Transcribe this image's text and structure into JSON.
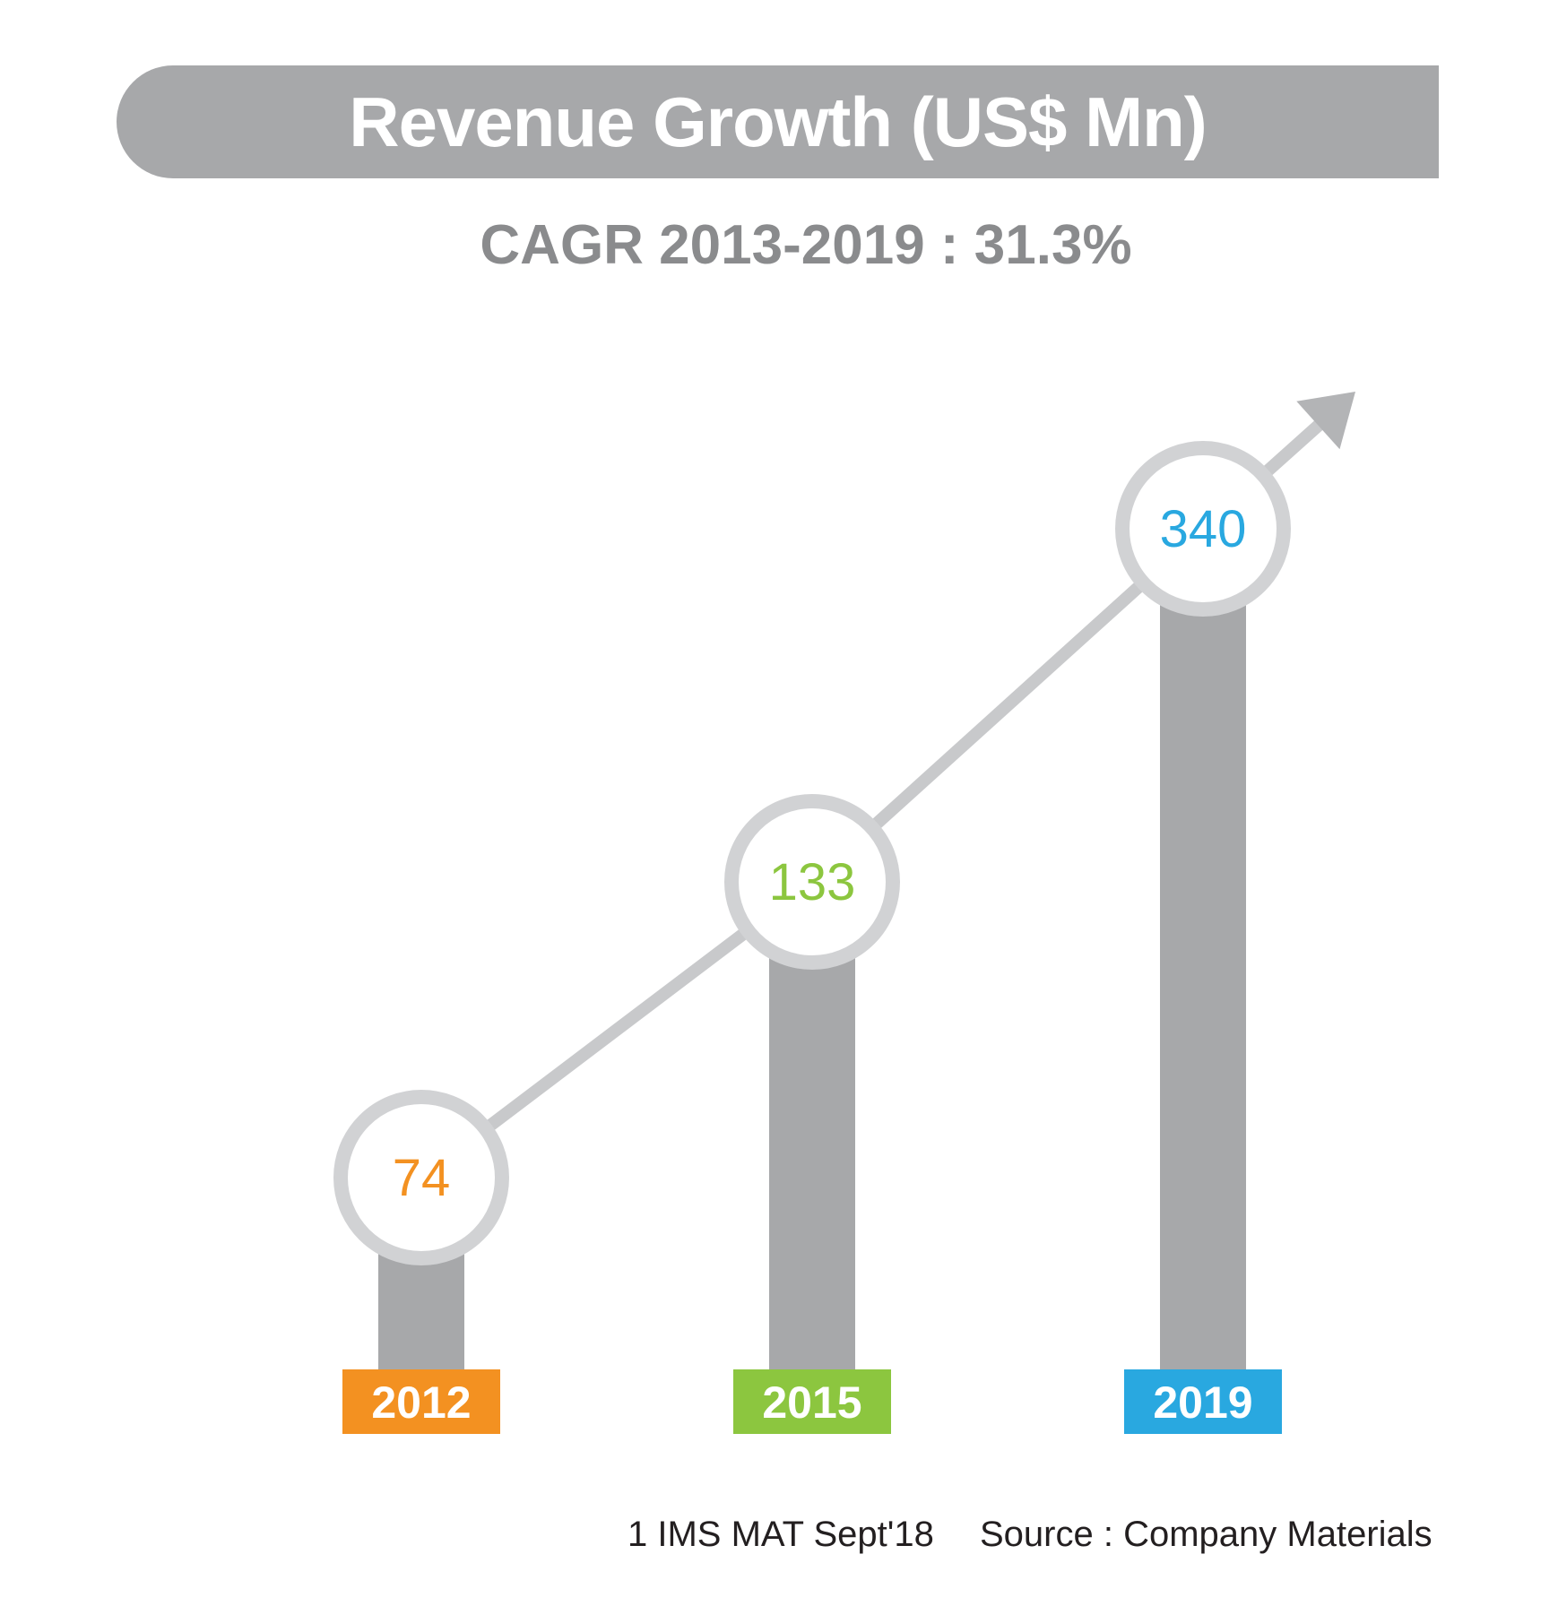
{
  "title": "Revenue Growth (US$ Mn)",
  "subtitle": "CAGR 2013-2019 : 31.3%",
  "footer": {
    "note": "1 IMS MAT Sept'18",
    "source": "Source : Company Materials"
  },
  "colors": {
    "bar": "#a7a8aa",
    "circle_ring": "#d1d2d4",
    "trend_line": "#c8c9cb",
    "title_bar": "#a7a8aa"
  },
  "chart_data": {
    "type": "bar",
    "title": "Revenue Growth (US$ Mn)",
    "subtitle": "CAGR 2013-2019 : 31.3%",
    "categories": [
      "2012",
      "2015",
      "2019"
    ],
    "values": [
      74,
      133,
      340
    ],
    "category_colors": [
      "#f39121",
      "#8cc63f",
      "#29a8e0"
    ],
    "data_labels": [
      "74",
      "133",
      "340"
    ],
    "trend_arrow": true,
    "grid": false,
    "legend": "none"
  }
}
